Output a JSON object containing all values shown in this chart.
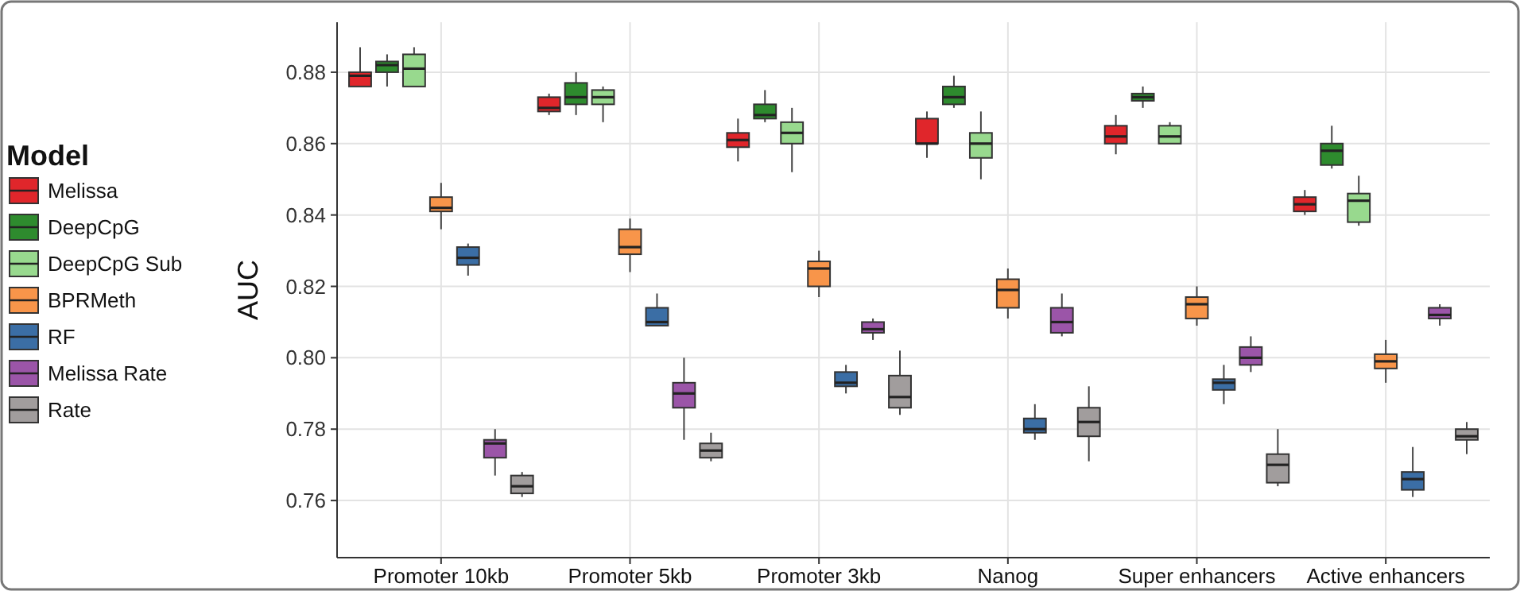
{
  "chart_data": {
    "type": "box",
    "ylabel": "AUC",
    "legend_title": "Model",
    "legend": "left",
    "grid": true,
    "categories": [
      "Promoter 10kb",
      "Promoter 5kb",
      "Promoter 3kb",
      "Nanog",
      "Super enhancers",
      "Active enhancers"
    ],
    "ylim": [
      0.744,
      0.894
    ],
    "yticks": [
      {
        "value": 0.76,
        "label": "0.76"
      },
      {
        "value": 0.78,
        "label": "0.78"
      },
      {
        "value": 0.8,
        "label": "0.80"
      },
      {
        "value": 0.82,
        "label": "0.82"
      },
      {
        "value": 0.84,
        "label": "0.84"
      },
      {
        "value": 0.86,
        "label": "0.86"
      },
      {
        "value": 0.88,
        "label": "0.88"
      }
    ],
    "series": [
      {
        "name": "Melissa",
        "color": "#e0262b",
        "boxes": [
          {
            "low": 0.876,
            "q1": 0.876,
            "median": 0.879,
            "q3": 0.88,
            "high": 0.887
          },
          {
            "low": 0.868,
            "q1": 0.869,
            "median": 0.87,
            "q3": 0.873,
            "high": 0.874
          },
          {
            "low": 0.855,
            "q1": 0.859,
            "median": 0.861,
            "q3": 0.863,
            "high": 0.867
          },
          {
            "low": 0.856,
            "q1": 0.86,
            "median": 0.86,
            "q3": 0.867,
            "high": 0.869
          },
          {
            "low": 0.857,
            "q1": 0.86,
            "median": 0.862,
            "q3": 0.865,
            "high": 0.868
          },
          {
            "low": 0.84,
            "q1": 0.841,
            "median": 0.843,
            "q3": 0.845,
            "high": 0.847
          }
        ]
      },
      {
        "name": "DeepCpG",
        "color": "#2e8b2e",
        "boxes": [
          {
            "low": 0.876,
            "q1": 0.88,
            "median": 0.882,
            "q3": 0.883,
            "high": 0.885
          },
          {
            "low": 0.868,
            "q1": 0.871,
            "median": 0.873,
            "q3": 0.877,
            "high": 0.88
          },
          {
            "low": 0.866,
            "q1": 0.867,
            "median": 0.868,
            "q3": 0.871,
            "high": 0.875
          },
          {
            "low": 0.87,
            "q1": 0.871,
            "median": 0.873,
            "q3": 0.876,
            "high": 0.879
          },
          {
            "low": 0.87,
            "q1": 0.872,
            "median": 0.873,
            "q3": 0.874,
            "high": 0.876
          },
          {
            "low": 0.853,
            "q1": 0.854,
            "median": 0.858,
            "q3": 0.86,
            "high": 0.865
          }
        ]
      },
      {
        "name": "DeepCpG Sub",
        "color": "#98d98e",
        "boxes": [
          {
            "low": 0.876,
            "q1": 0.876,
            "median": 0.881,
            "q3": 0.885,
            "high": 0.887
          },
          {
            "low": 0.866,
            "q1": 0.871,
            "median": 0.873,
            "q3": 0.875,
            "high": 0.876
          },
          {
            "low": 0.852,
            "q1": 0.86,
            "median": 0.863,
            "q3": 0.866,
            "high": 0.87
          },
          {
            "low": 0.85,
            "q1": 0.856,
            "median": 0.86,
            "q3": 0.863,
            "high": 0.869
          },
          {
            "low": 0.86,
            "q1": 0.86,
            "median": 0.862,
            "q3": 0.865,
            "high": 0.866
          },
          {
            "low": 0.837,
            "q1": 0.838,
            "median": 0.844,
            "q3": 0.846,
            "high": 0.851
          }
        ]
      },
      {
        "name": "BPRMeth",
        "color": "#f8954a",
        "boxes": [
          {
            "low": 0.836,
            "q1": 0.841,
            "median": 0.842,
            "q3": 0.845,
            "high": 0.849
          },
          {
            "low": 0.824,
            "q1": 0.829,
            "median": 0.831,
            "q3": 0.836,
            "high": 0.839
          },
          {
            "low": 0.817,
            "q1": 0.82,
            "median": 0.825,
            "q3": 0.827,
            "high": 0.83
          },
          {
            "low": 0.811,
            "q1": 0.814,
            "median": 0.819,
            "q3": 0.822,
            "high": 0.825
          },
          {
            "low": 0.809,
            "q1": 0.811,
            "median": 0.815,
            "q3": 0.817,
            "high": 0.82
          },
          {
            "low": 0.793,
            "q1": 0.797,
            "median": 0.799,
            "q3": 0.801,
            "high": 0.805
          }
        ]
      },
      {
        "name": "RF",
        "color": "#3b6ea5",
        "boxes": [
          {
            "low": 0.823,
            "q1": 0.826,
            "median": 0.828,
            "q3": 0.831,
            "high": 0.832
          },
          {
            "low": 0.809,
            "q1": 0.809,
            "median": 0.81,
            "q3": 0.814,
            "high": 0.818
          },
          {
            "low": 0.79,
            "q1": 0.792,
            "median": 0.793,
            "q3": 0.796,
            "high": 0.798
          },
          {
            "low": 0.777,
            "q1": 0.779,
            "median": 0.78,
            "q3": 0.783,
            "high": 0.787
          },
          {
            "low": 0.787,
            "q1": 0.791,
            "median": 0.793,
            "q3": 0.794,
            "high": 0.798
          },
          {
            "low": 0.761,
            "q1": 0.763,
            "median": 0.766,
            "q3": 0.768,
            "high": 0.775
          }
        ]
      },
      {
        "name": "Melissa Rate",
        "color": "#9b55a8",
        "boxes": [
          {
            "low": 0.767,
            "q1": 0.772,
            "median": 0.776,
            "q3": 0.777,
            "high": 0.78
          },
          {
            "low": 0.777,
            "q1": 0.786,
            "median": 0.79,
            "q3": 0.793,
            "high": 0.8
          },
          {
            "low": 0.805,
            "q1": 0.807,
            "median": 0.808,
            "q3": 0.81,
            "high": 0.811
          },
          {
            "low": 0.806,
            "q1": 0.807,
            "median": 0.81,
            "q3": 0.814,
            "high": 0.818
          },
          {
            "low": 0.796,
            "q1": 0.798,
            "median": 0.8,
            "q3": 0.803,
            "high": 0.806
          },
          {
            "low": 0.809,
            "q1": 0.811,
            "median": 0.812,
            "q3": 0.814,
            "high": 0.815
          }
        ]
      },
      {
        "name": "Rate",
        "color": "#a19d9d",
        "boxes": [
          {
            "low": 0.761,
            "q1": 0.762,
            "median": 0.764,
            "q3": 0.767,
            "high": 0.768
          },
          {
            "low": 0.771,
            "q1": 0.772,
            "median": 0.774,
            "q3": 0.776,
            "high": 0.779
          },
          {
            "low": 0.784,
            "q1": 0.786,
            "median": 0.789,
            "q3": 0.795,
            "high": 0.802
          },
          {
            "low": 0.771,
            "q1": 0.778,
            "median": 0.782,
            "q3": 0.786,
            "high": 0.792
          },
          {
            "low": 0.764,
            "q1": 0.765,
            "median": 0.77,
            "q3": 0.773,
            "high": 0.78
          },
          {
            "low": 0.773,
            "q1": 0.777,
            "median": 0.778,
            "q3": 0.78,
            "high": 0.782
          }
        ]
      }
    ]
  }
}
